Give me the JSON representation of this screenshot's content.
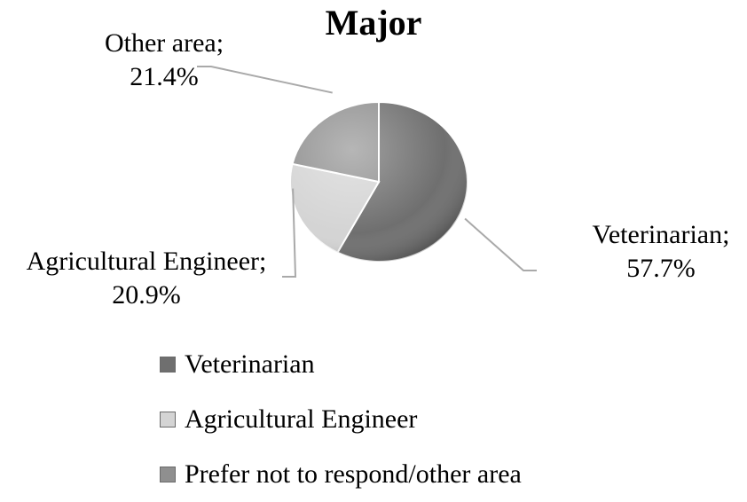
{
  "chart_data": {
    "type": "pie",
    "title": "Major",
    "slices": [
      {
        "label": "Veterinarian",
        "value": 57.7,
        "color": "#6f6f6f",
        "data_label_name": "Veterinarian;",
        "data_label_value": "57.7%"
      },
      {
        "label": "Agricultural Engineer",
        "value": 20.9,
        "color": "#d4d4d4",
        "data_label_name": "Agricultural Engineer;",
        "data_label_value": "20.9%"
      },
      {
        "label": "Prefer not to respond/other area",
        "value": 21.4,
        "color": "#8f8f8f",
        "data_label_name": "Other area;",
        "data_label_value": "21.4%"
      }
    ],
    "legend_position": "bottom",
    "legend": [
      "Veterinarian",
      "Agricultural Engineer",
      "Prefer not to respond/other area"
    ]
  }
}
